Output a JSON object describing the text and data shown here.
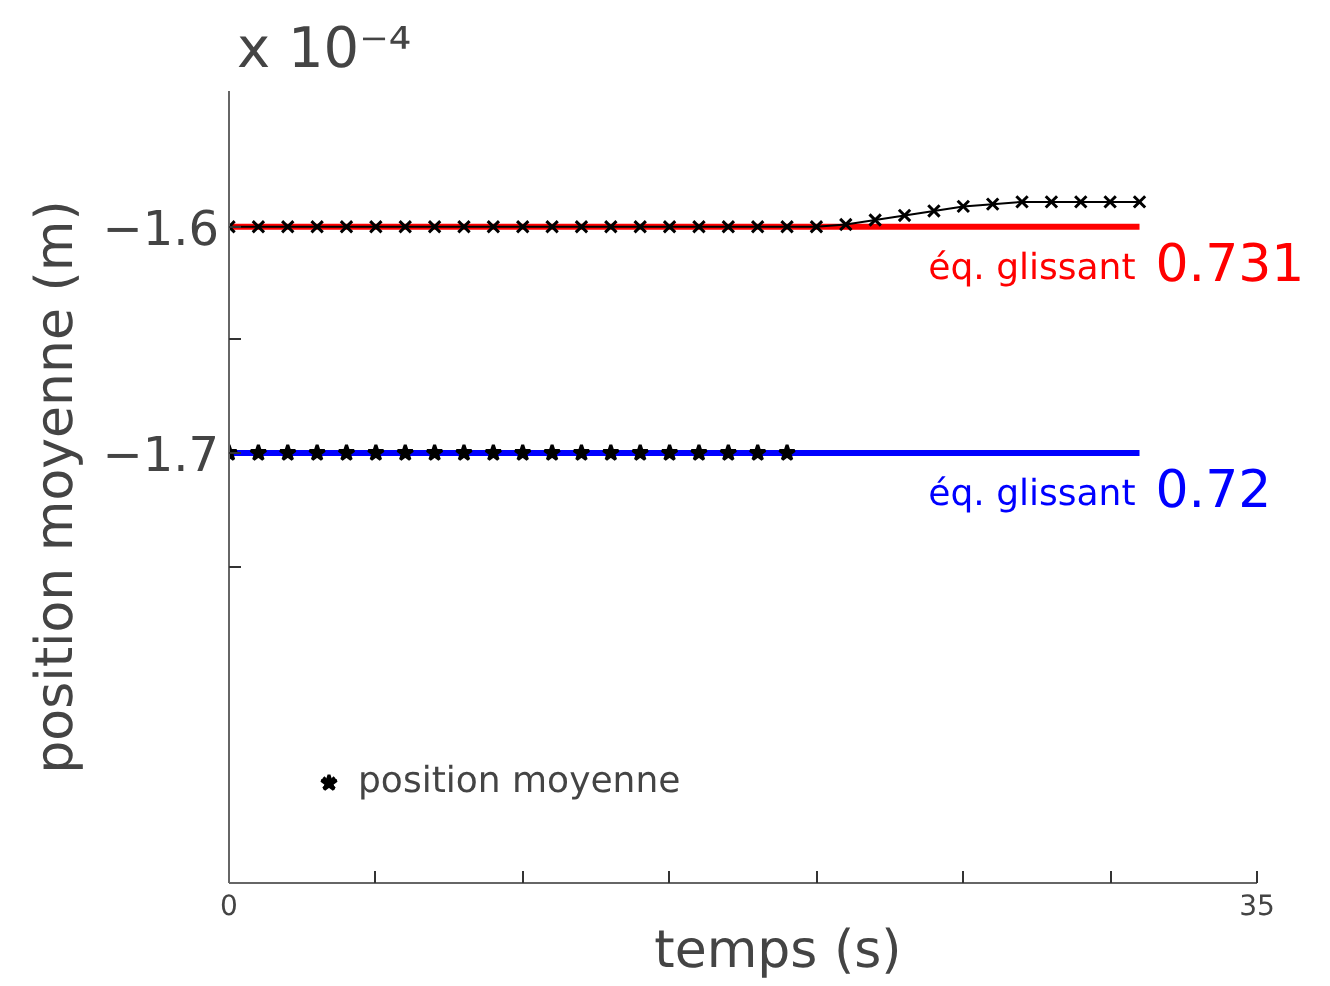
{
  "chart_data": {
    "type": "line",
    "xlabel": "temps (s)",
    "ylabel": "position moyenne (m)",
    "xlim": [
      0,
      35
    ],
    "ylim": [
      -1.89,
      -1.54
    ],
    "xticks": [
      0,
      {
        "value": 5,
        "label": null
      },
      {
        "value": 10,
        "label": null
      },
      {
        "value": 15,
        "label": null
      },
      {
        "value": 20,
        "label": null
      },
      {
        "value": 25,
        "label": null
      },
      {
        "value": 30,
        "label": null
      },
      35
    ],
    "yticks": [
      {
        "value": -1.6,
        "label": "−1.6"
      },
      {
        "value": -1.65,
        "label": null
      },
      {
        "value": -1.7,
        "label": "−1.7"
      },
      {
        "value": -1.75,
        "label": null
      }
    ],
    "grid": false,
    "legend": "bottom left",
    "annotations": [
      "x 10⁻⁴",
      {
        "text": "0.731",
        "x": 31,
        "y": -1.6
      },
      {
        "text": "0.72",
        "x": 31,
        "y": -1.7
      }
    ],
    "series": [
      {
        "name": "position moyenne",
        "color": "#000000",
        "marker": "cross",
        "line_style": "solid",
        "x": [
          0,
          1,
          2,
          3,
          4,
          5,
          6,
          7,
          8,
          9,
          10,
          11,
          12,
          13,
          14,
          15,
          16,
          17,
          18,
          19,
          20,
          21,
          22,
          23,
          24,
          25,
          26,
          27,
          28,
          29,
          30,
          31
        ],
        "values": [
          -1.6,
          -1.6,
          -1.6,
          -1.6,
          -1.6,
          -1.6,
          -1.6,
          -1.6,
          -1.6,
          -1.6,
          -1.6,
          -1.6,
          -1.6,
          -1.6,
          -1.6,
          -1.6,
          -1.6,
          -1.6,
          -1.6,
          -1.6,
          -1.6,
          -1.599,
          -1.597,
          -1.595,
          -1.593,
          -1.591,
          -1.59,
          -1.589,
          -1.589,
          -1.589,
          -1.589,
          -1.589
        ]
      },
      {
        "type": "scatter",
        "color": "#000000",
        "marker": "star",
        "x": [
          0,
          1,
          2,
          3,
          4,
          5,
          6,
          7,
          8,
          9,
          10,
          11,
          12,
          13,
          14,
          15,
          16,
          17,
          18,
          19
        ],
        "values": [
          -1.7,
          -1.7,
          -1.7,
          -1.7,
          -1.7,
          -1.7,
          -1.7,
          -1.7,
          -1.7,
          -1.7,
          -1.7,
          -1.7,
          -1.7,
          -1.7,
          -1.7,
          -1.7,
          -1.7,
          -1.7,
          -1.7,
          -1.7
        ]
      },
      {
        "name": "éq. glissant",
        "color": "#ff0000",
        "marker": "none",
        "line_style": "solid",
        "x": [
          0,
          31
        ],
        "values": [
          -1.6,
          -1.6
        ]
      },
      {
        "name": "éq. glissant",
        "color": "#0000ff",
        "marker": "none",
        "line_style": "solid",
        "x": [
          0,
          31
        ],
        "values": [
          -1.7,
          -1.7
        ]
      }
    ]
  }
}
